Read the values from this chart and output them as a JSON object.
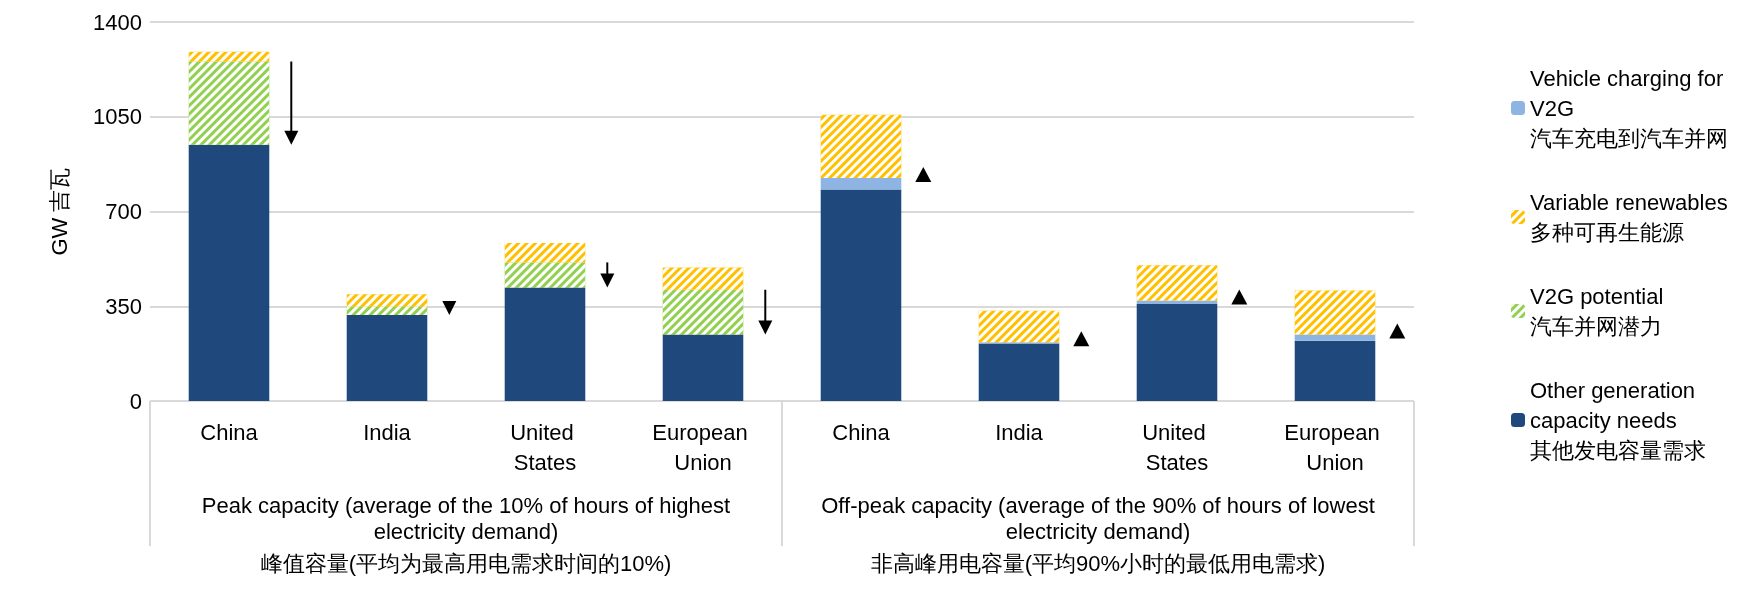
{
  "chart_data": {
    "type": "bar",
    "stacked": true,
    "ylabel": "GW 吉瓦",
    "categories": [
      "China",
      "India",
      "United States",
      "European Union",
      "China",
      "India",
      "United States",
      "European Union"
    ],
    "series": [
      {
        "name": "Other generation capacity needs 其他发电容量需求",
        "color": "#1f497d",
        "values": [
          947,
          318,
          419,
          246,
          781,
          212,
          358,
          223
        ]
      },
      {
        "name": "Vehicle charging for V2G 汽车充电到汽车并网",
        "color": "#8eb4e3",
        "values": [
          null,
          null,
          null,
          null,
          43,
          5,
          13,
          23
        ]
      },
      {
        "name": "V2G potential 汽车并网潜力",
        "color": "#92d050",
        "values": [
          307,
          31,
          93,
          165,
          null,
          null,
          null,
          null
        ]
      },
      {
        "name": "Variable renewables 多种可再生能源",
        "color": "#ffc000",
        "values": [
          36,
          45,
          72,
          82,
          233,
          116,
          130,
          162
        ]
      }
    ],
    "ylim": [
      0,
      1400
    ],
    "yticks": [
      0,
      350,
      700,
      1050,
      1400
    ],
    "grid": "y",
    "legend": "right",
    "annotations": [
      "Peak capacity (average of the 10% of hours of highest electricity demand)",
      "峰值容量(平均为最高用电需求时间的10%)",
      "Off-peak capacity (average of the 90% of hours of lowest electricity demand)",
      "非高峰用电容量(平均90%小时的最低用电需求)"
    ]
  }
}
